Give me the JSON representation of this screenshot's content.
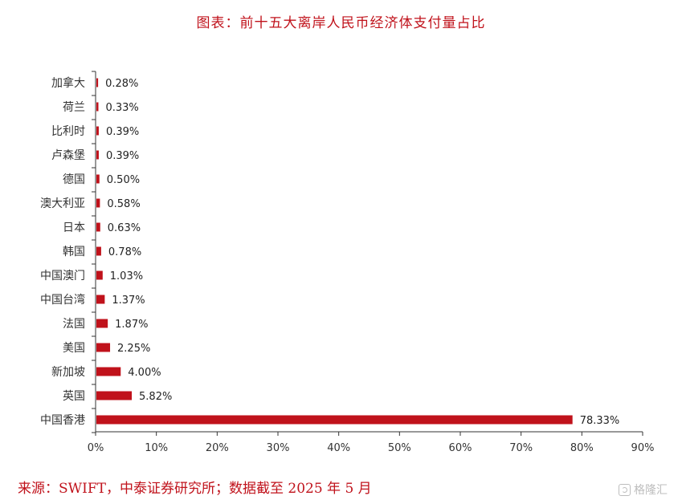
{
  "source_note": "来源：SWIFT，中泰证券研究所；数据截至 2025 年 5 月",
  "watermark_text": "格隆汇",
  "chart_data": {
    "type": "bar",
    "orientation": "horizontal",
    "title": "图表：前十五大离岸人民币经济体支付量占比",
    "xlabel": "",
    "ylabel": "",
    "xlim": [
      0,
      90
    ],
    "x_ticks": [
      "0%",
      "10%",
      "20%",
      "30%",
      "40%",
      "50%",
      "60%",
      "70%",
      "80%",
      "90%"
    ],
    "grid": false,
    "bar_color": "#c0121b",
    "categories": [
      "加拿大",
      "荷兰",
      "比利时",
      "卢森堡",
      "德国",
      "澳大利亚",
      "日本",
      "韩国",
      "中国澳门",
      "中国台湾",
      "法国",
      "美国",
      "新加坡",
      "英国",
      "中国香港"
    ],
    "values": [
      0.28,
      0.33,
      0.39,
      0.39,
      0.5,
      0.58,
      0.63,
      0.78,
      1.03,
      1.37,
      1.87,
      2.25,
      4.0,
      5.82,
      78.33
    ],
    "value_labels": [
      "0.28%",
      "0.33%",
      "0.39%",
      "0.39%",
      "0.50%",
      "0.58%",
      "0.63%",
      "0.78%",
      "1.03%",
      "1.37%",
      "1.87%",
      "2.25%",
      "4.00%",
      "5.82%",
      "78.33%"
    ]
  }
}
